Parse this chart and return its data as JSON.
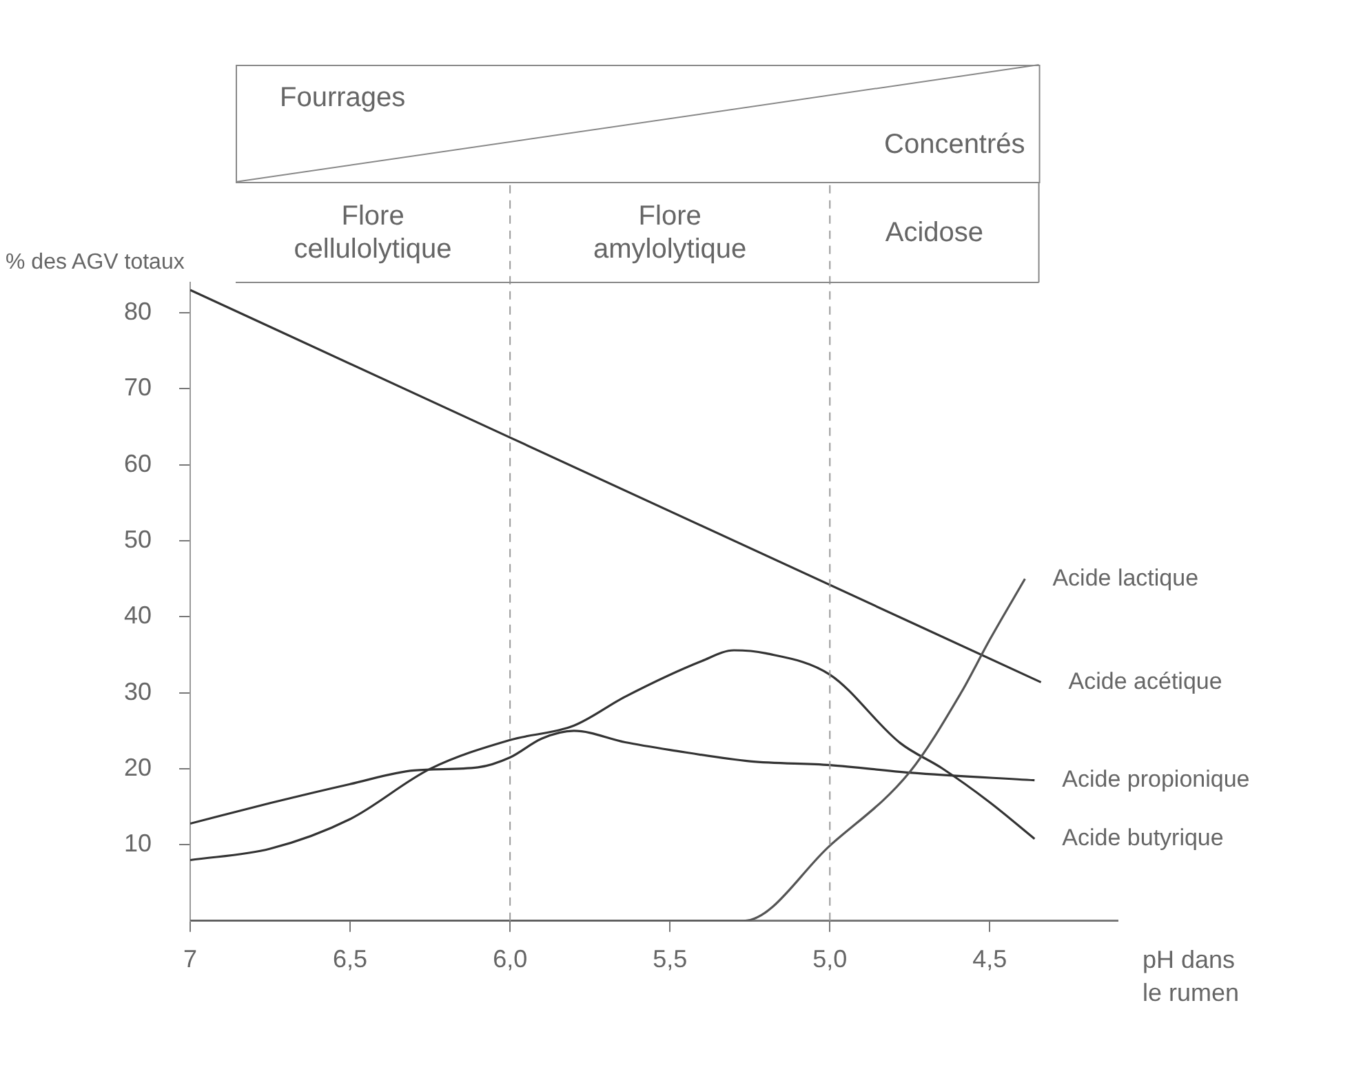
{
  "chart_data": {
    "type": "line",
    "ylabel": "% des AGV totaux",
    "xlabel": "pH dans le rumen",
    "xlim": [
      7,
      4.1
    ],
    "ylim": [
      0,
      84
    ],
    "xticks": [
      7,
      {
        "value": 6.5,
        "label": "6,5"
      },
      {
        "value": 6.0,
        "label": "6,0"
      },
      {
        "value": 5.5,
        "label": "5,5"
      },
      {
        "value": 5.0,
        "label": "5,0"
      },
      {
        "value": 4.5,
        "label": "4,5"
      }
    ],
    "yticks": [
      10,
      20,
      30,
      40,
      50,
      60,
      70,
      80
    ],
    "grid": false,
    "legend": false,
    "marker": "none",
    "line_style": "solid",
    "series": [
      {
        "name": "Acide lactique",
        "color": "#555555",
        "x": [
          7,
          6.5,
          6.0,
          5.5,
          5.27,
          5.0,
          4.75,
          4.59,
          4.5,
          4.39
        ],
        "values": [
          0,
          0,
          0,
          0,
          0,
          9.9,
          19.6,
          30,
          37,
          45
        ]
      },
      {
        "name": "Acide acétique",
        "color": "#333333",
        "x": [
          7,
          6.0,
          4.34
        ],
        "values": [
          83,
          63.6,
          31.4
        ]
      },
      {
        "name": "Acide propionique",
        "color": "#333333",
        "x": [
          7,
          6.75,
          6.5,
          6.3,
          6.1,
          6.0,
          5.9,
          5.8,
          5.64,
          5.5,
          5.25,
          5.0,
          4.75,
          4.36
        ],
        "values": [
          12.8,
          15.5,
          18,
          19.8,
          20.2,
          21.5,
          24,
          25,
          23.5,
          22.5,
          21,
          20.5,
          19.5,
          18.5
        ]
      },
      {
        "name": "Acide butyrique",
        "color": "#333333",
        "x": [
          7,
          6.75,
          6.5,
          6.25,
          6.0,
          5.8,
          5.64,
          5.4,
          5.3,
          5.2,
          5.0,
          4.78,
          4.65,
          4.5,
          4.36
        ],
        "values": [
          8,
          9.5,
          13.4,
          20,
          23.8,
          25.7,
          29.5,
          34.2,
          35.6,
          35.2,
          32.4,
          23.4,
          20.1,
          15.6,
          10.8
        ]
      }
    ],
    "ref_lines": [
      {
        "axis": "x",
        "value": 6.0,
        "line_style": "dashed",
        "color": "#999999"
      },
      {
        "axis": "x",
        "value": 5.0,
        "line_style": "dashed",
        "color": "#999999"
      }
    ],
    "annotations": [
      "Fourrages",
      "Concentrés",
      "Flore cellulolytique",
      "Flore amylolytique",
      "Acidose"
    ]
  }
}
